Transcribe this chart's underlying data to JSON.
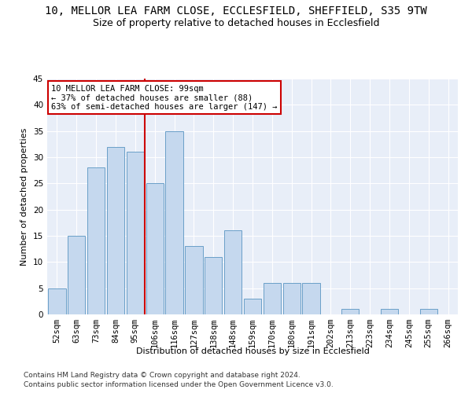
{
  "title_line1": "10, MELLOR LEA FARM CLOSE, ECCLESFIELD, SHEFFIELD, S35 9TW",
  "title_line2": "Size of property relative to detached houses in Ecclesfield",
  "xlabel": "Distribution of detached houses by size in Ecclesfield",
  "ylabel": "Number of detached properties",
  "bar_labels": [
    "52sqm",
    "63sqm",
    "73sqm",
    "84sqm",
    "95sqm",
    "106sqm",
    "116sqm",
    "127sqm",
    "138sqm",
    "148sqm",
    "159sqm",
    "170sqm",
    "180sqm",
    "191sqm",
    "202sqm",
    "213sqm",
    "223sqm",
    "234sqm",
    "245sqm",
    "255sqm",
    "266sqm"
  ],
  "bar_values": [
    5,
    15,
    28,
    32,
    31,
    25,
    35,
    13,
    11,
    16,
    3,
    6,
    6,
    6,
    0,
    1,
    0,
    1,
    0,
    1,
    0
  ],
  "bar_color": "#c5d8ee",
  "bar_edgecolor": "#6a9fc8",
  "red_line_x": 4.5,
  "red_line_color": "#cc0000",
  "annotation_line1": "10 MELLOR LEA FARM CLOSE: 99sqm",
  "annotation_line2": "← 37% of detached houses are smaller (88)",
  "annotation_line3": "63% of semi-detached houses are larger (147) →",
  "annotation_box_color": "#ffffff",
  "annotation_box_edge": "#cc0000",
  "ylim": [
    0,
    45
  ],
  "yticks": [
    0,
    5,
    10,
    15,
    20,
    25,
    30,
    35,
    40,
    45
  ],
  "bg_color": "#e8eef8",
  "grid_color": "#ffffff",
  "footer_line1": "Contains HM Land Registry data © Crown copyright and database right 2024.",
  "footer_line2": "Contains public sector information licensed under the Open Government Licence v3.0.",
  "title_fontsize": 10,
  "subtitle_fontsize": 9,
  "ylabel_fontsize": 8,
  "xlabel_fontsize": 8,
  "tick_fontsize": 7.5,
  "annotation_fontsize": 7.5,
  "footer_fontsize": 6.5
}
